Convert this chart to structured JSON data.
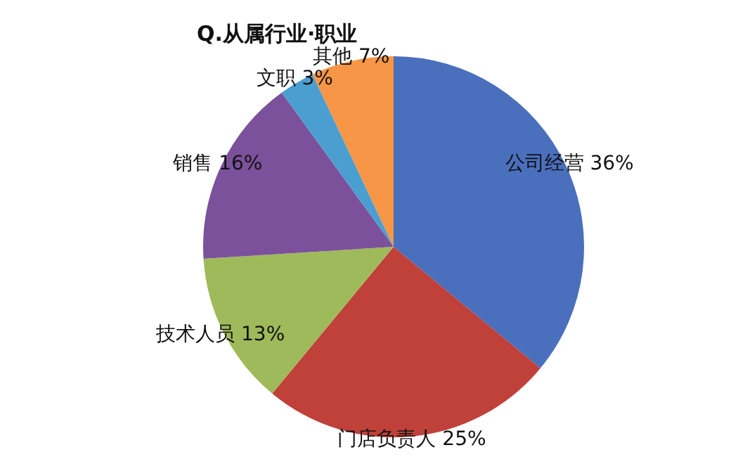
{
  "chart_data": {
    "type": "pie",
    "title": "Q.从属行业·职业",
    "categories": [
      "公司经营",
      "门店负责人",
      "技术人员",
      "销售",
      "文职",
      "其他"
    ],
    "values": [
      36,
      25,
      13,
      16,
      3,
      7
    ],
    "value_labels": [
      "36%",
      "25%",
      "13%",
      "16%",
      "3%",
      "7%"
    ],
    "colors": [
      "#4a6fbd",
      "#c0403a",
      "#9fba5a",
      "#7b519c",
      "#4b9fd0",
      "#f79646"
    ],
    "legend": false
  }
}
